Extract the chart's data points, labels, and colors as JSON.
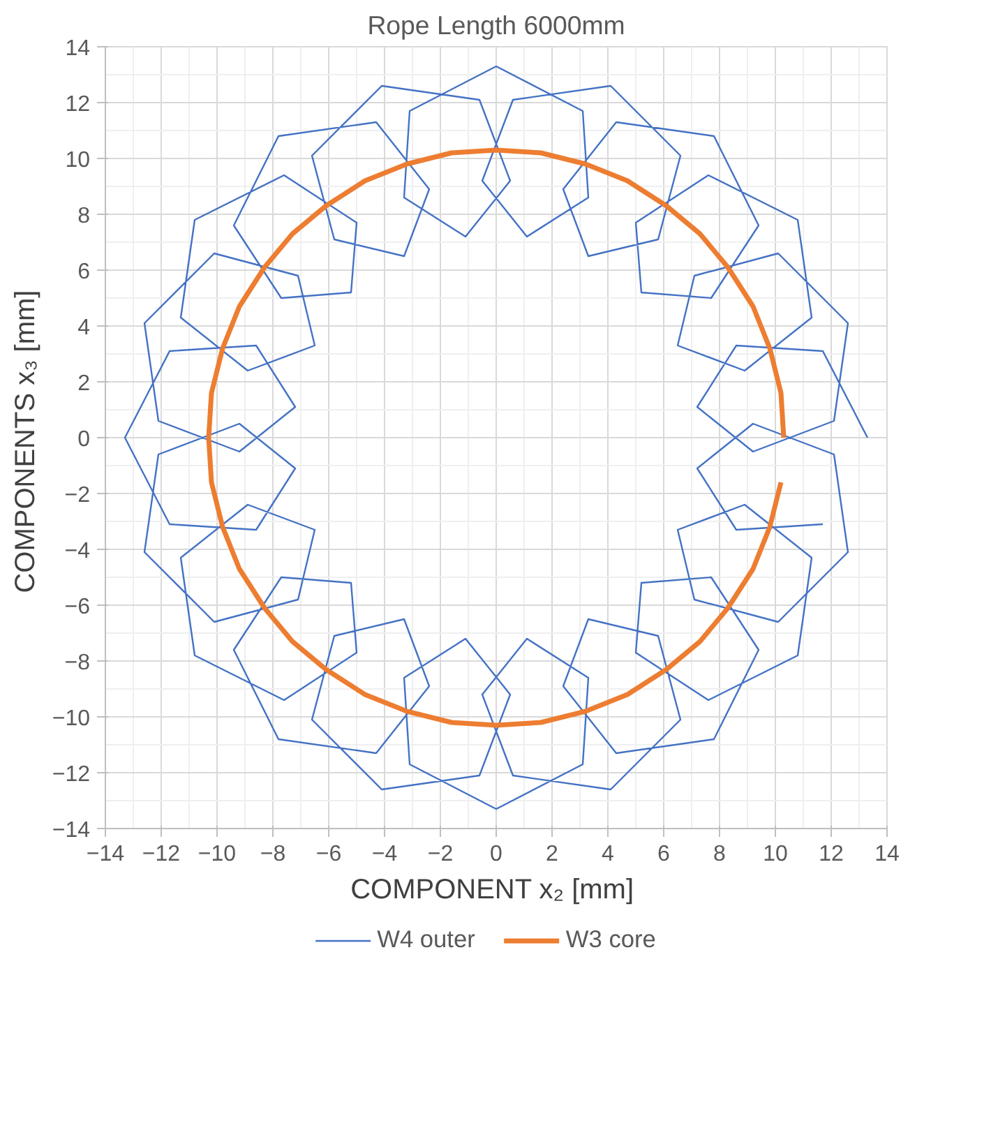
{
  "chart_data": {
    "type": "line",
    "title": "Rope Length 6000mm",
    "xlabel": "COMPONENT x₂  [mm]",
    "ylabel": "COMPONENTS x₃  [mm]",
    "xlim": [
      -14,
      14
    ],
    "ylim": [
      -14,
      14
    ],
    "xticks": [
      -14,
      -12,
      -10,
      -8,
      -6,
      -4,
      -2,
      0,
      2,
      4,
      6,
      8,
      10,
      12,
      14
    ],
    "yticks": [
      -14,
      -12,
      -10,
      -8,
      -6,
      -4,
      -2,
      0,
      2,
      4,
      6,
      8,
      10,
      12,
      14
    ],
    "grid": true,
    "legend": "bottom",
    "series": [
      {
        "name": "W4 outer",
        "color": "#4472c4",
        "x": [
          13.3,
          11.7,
          8.6,
          7.2,
          9.2,
          12.1,
          12.6,
          10.1,
          7.1,
          6.5,
          8.9,
          11.3,
          10.8,
          7.6,
          5.0,
          5.2,
          7.7,
          9.4,
          7.8,
          4.3,
          2.4,
          3.3,
          5.8,
          6.6,
          4.1,
          0.6,
          -0.5,
          1.1,
          3.3,
          3.1,
          0,
          -3.1,
          -3.3,
          -1.1,
          0.5,
          -0.6,
          -4.1,
          -6.6,
          -5.8,
          -3.3,
          -2.4,
          -4.3,
          -7.8,
          -9.4,
          -7.7,
          -5.2,
          -5.0,
          -7.6,
          -10.8,
          -11.3,
          -8.9,
          -6.5,
          -7.1,
          -10.1,
          -12.6,
          -12.1,
          -9.2,
          -7.2,
          -8.6,
          -11.7,
          -13.3,
          -11.7,
          -8.6,
          -7.2,
          -9.2,
          -12.1,
          -12.6,
          -10.1,
          -7.1,
          -6.5,
          -8.9,
          -11.3,
          -10.8,
          -7.6,
          -5.0,
          -5.2,
          -7.7,
          -9.4,
          -7.8,
          -4.3,
          -2.4,
          -3.3,
          -5.8,
          -6.6,
          -4.1,
          -0.6,
          0.5,
          -1.1,
          -3.3,
          -3.1,
          0,
          3.1,
          3.3,
          1.1,
          -0.5,
          0.6,
          4.1,
          6.6,
          5.8,
          3.3,
          2.4,
          4.3,
          7.8,
          9.4,
          7.7,
          5.2,
          5.0,
          7.6,
          10.8,
          11.3,
          8.9,
          6.5,
          7.1,
          10.1,
          12.6,
          12.1,
          9.2,
          7.2,
          8.6,
          11.7
        ],
        "values": [
          0,
          3.1,
          3.3,
          1.1,
          -0.5,
          0.6,
          4.1,
          6.6,
          5.8,
          3.3,
          2.4,
          4.3,
          7.8,
          9.4,
          7.7,
          5.2,
          5.0,
          7.6,
          10.8,
          11.3,
          8.9,
          6.5,
          7.1,
          10.1,
          12.6,
          12.1,
          9.2,
          7.2,
          8.6,
          11.7,
          13.3,
          11.7,
          8.6,
          7.2,
          9.2,
          12.1,
          12.6,
          10.1,
          7.1,
          6.5,
          8.9,
          11.3,
          10.8,
          7.6,
          5.0,
          5.2,
          7.7,
          9.4,
          7.8,
          4.3,
          2.4,
          3.3,
          5.8,
          6.6,
          4.1,
          0.6,
          -0.5,
          1.1,
          3.3,
          3.1,
          0,
          -3.1,
          -3.3,
          -1.1,
          0.5,
          -0.6,
          -4.1,
          -6.6,
          -5.8,
          -3.3,
          -2.4,
          -4.3,
          -7.8,
          -9.4,
          -7.7,
          -5.2,
          -5.0,
          -7.6,
          -10.8,
          -11.3,
          -8.9,
          -6.5,
          -7.1,
          -10.1,
          -12.6,
          -12.1,
          -9.2,
          -7.2,
          -8.6,
          -11.7,
          -13.3,
          -11.7,
          -8.6,
          -7.2,
          -9.2,
          -12.1,
          -12.6,
          -10.1,
          -7.1,
          -6.5,
          -8.9,
          -11.3,
          -10.8,
          -7.6,
          -5.0,
          -5.2,
          -7.7,
          -9.4,
          -7.8,
          -4.3,
          -2.4,
          -3.3,
          -5.8,
          -6.6,
          -4.1,
          -0.6,
          0.5,
          -1.1,
          -3.3,
          -3.1
        ]
      },
      {
        "name": "W3 core",
        "color": "#ed7d31",
        "x": [
          10.3,
          10.2,
          9.8,
          9.2,
          8.3,
          7.3,
          6.1,
          4.7,
          3.2,
          1.6,
          0,
          -1.6,
          -3.2,
          -4.7,
          -6.1,
          -7.3,
          -8.3,
          -9.2,
          -9.8,
          -10.2,
          -10.3,
          -10.2,
          -9.8,
          -9.2,
          -8.3,
          -7.3,
          -6.1,
          -4.7,
          -3.2,
          -1.6,
          0,
          1.6,
          3.2,
          4.7,
          6.1,
          7.3,
          8.3,
          9.2,
          9.8,
          10.2
        ],
        "values": [
          0,
          1.6,
          3.2,
          4.7,
          6.1,
          7.3,
          8.3,
          9.2,
          9.8,
          10.2,
          10.3,
          10.2,
          9.8,
          9.2,
          8.3,
          7.3,
          6.1,
          4.7,
          3.2,
          1.6,
          0,
          -1.6,
          -3.2,
          -4.7,
          -6.1,
          -7.3,
          -8.3,
          -9.2,
          -9.8,
          -10.2,
          -10.3,
          -10.2,
          -9.8,
          -9.2,
          -8.3,
          -7.3,
          -6.1,
          -4.7,
          -3.2,
          -1.6
        ]
      }
    ]
  }
}
